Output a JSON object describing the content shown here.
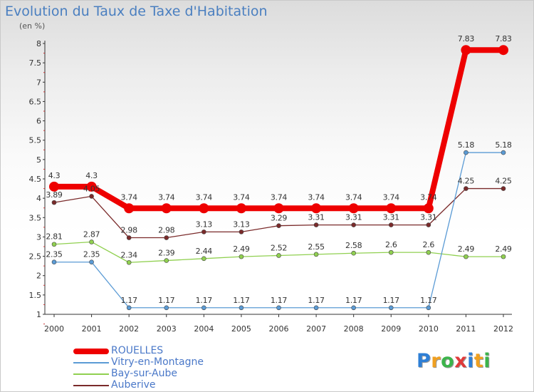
{
  "chart_data": {
    "type": "line",
    "title": "Evolution du Taux de Taxe d'Habitation",
    "subtitle": "(en %)",
    "x": [
      "2000",
      "2001",
      "2002",
      "2003",
      "2004",
      "2005",
      "2006",
      "2007",
      "2008",
      "2009",
      "2010",
      "2011",
      "2012"
    ],
    "ylim": [
      1,
      8
    ],
    "yticks": [
      "1",
      "1.5",
      "2",
      "2.5",
      "3",
      "3.5",
      "4",
      "4.5",
      "5",
      "5.5",
      "6",
      "6.5",
      "7",
      "7.5",
      "8"
    ],
    "grid": false,
    "legend_position": "bottom-left",
    "series": [
      {
        "name": "ROUELLES",
        "color": "#ee0000",
        "values": [
          4.3,
          4.3,
          3.74,
          3.74,
          3.74,
          3.74,
          3.74,
          3.74,
          3.74,
          3.74,
          3.74,
          7.83,
          7.83
        ],
        "labels": [
          "4.3",
          "4.3",
          "3.74",
          "3.74",
          "3.74",
          "3.74",
          "3.74",
          "3.74",
          "3.74",
          "3.74",
          "3.74",
          "7.83",
          "7.83"
        ]
      },
      {
        "name": "Vitry-en-Montagne",
        "color": "#5b9bd5",
        "values": [
          2.35,
          2.35,
          1.17,
          1.17,
          1.17,
          1.17,
          1.17,
          1.17,
          1.17,
          1.17,
          1.17,
          5.18,
          5.18
        ],
        "labels": [
          "2.35",
          "2.35",
          "1.17",
          "1.17",
          "1.17",
          "1.17",
          "1.17",
          "1.17",
          "1.17",
          "1.17",
          "1.17",
          "5.18",
          "5.18"
        ]
      },
      {
        "name": "Bay-sur-Aube",
        "color": "#90d050",
        "values": [
          2.81,
          2.87,
          2.34,
          2.39,
          2.44,
          2.49,
          2.52,
          2.55,
          2.58,
          2.6,
          2.6,
          2.49,
          2.49
        ],
        "labels": [
          "2.81",
          "2.87",
          "2.34",
          "2.39",
          "2.44",
          "2.49",
          "2.52",
          "2.55",
          "2.58",
          "2.6",
          "2.6",
          "2.49",
          "2.49"
        ]
      },
      {
        "name": "Auberive",
        "color": "#7a2a2a",
        "values": [
          3.89,
          4.05,
          2.98,
          2.98,
          3.13,
          3.13,
          3.29,
          3.31,
          3.31,
          3.31,
          3.31,
          4.25,
          4.25
        ],
        "labels": [
          "3.89",
          "4.05",
          "2.98",
          "2.98",
          "3.13",
          "3.13",
          "3.29",
          "3.31",
          "3.31",
          "3.31",
          "3.31",
          "4.25",
          "4.25"
        ]
      }
    ]
  },
  "logo": {
    "letters": [
      "P",
      "r",
      "o",
      "x",
      "i",
      "t",
      "i"
    ],
    "colors": [
      "#2e7fd6",
      "#f0a020",
      "#3cb44b",
      "#e03a3a",
      "#2e7fd6",
      "#f0a020",
      "#3cb44b"
    ]
  }
}
